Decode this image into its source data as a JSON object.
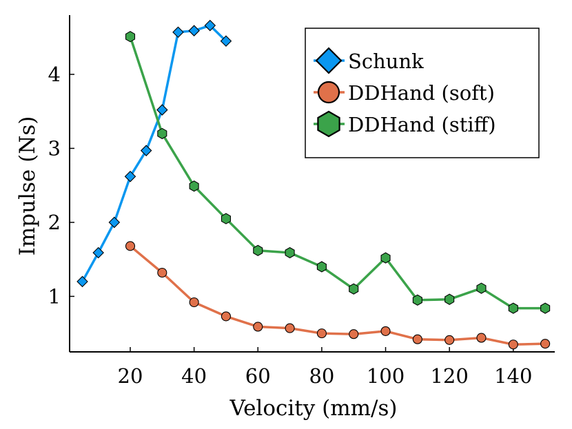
{
  "chart_data": {
    "type": "line",
    "title": "",
    "xlabel": "Velocity (mm/s)",
    "ylabel": "Impulse (Ns)",
    "xlim": [
      1,
      153
    ],
    "ylim": [
      0.25,
      4.8
    ],
    "xticks": [
      20,
      40,
      60,
      80,
      100,
      120,
      140
    ],
    "yticks": [
      1,
      2,
      3,
      4
    ],
    "grid": false,
    "legend_position": "top-right",
    "series": [
      {
        "name": "Schunk",
        "color": "#0a97f0",
        "marker": "diamond",
        "x": [
          5,
          10,
          15,
          20,
          25,
          30,
          35,
          40,
          45,
          50
        ],
        "y": [
          1.2,
          1.59,
          2.0,
          2.62,
          2.97,
          3.52,
          4.57,
          4.59,
          4.66,
          4.45
        ]
      },
      {
        "name": "DDHand (soft)",
        "color": "#e0714a",
        "marker": "circle",
        "x": [
          20,
          30,
          40,
          50,
          60,
          70,
          80,
          90,
          100,
          110,
          120,
          130,
          140,
          150
        ],
        "y": [
          1.68,
          1.32,
          0.92,
          0.73,
          0.59,
          0.57,
          0.5,
          0.49,
          0.53,
          0.42,
          0.41,
          0.44,
          0.35,
          0.36
        ]
      },
      {
        "name": "DDHand (stiff)",
        "color": "#3ba34a",
        "marker": "hexagon",
        "x": [
          20,
          30,
          40,
          50,
          60,
          70,
          80,
          90,
          100,
          110,
          120,
          130,
          140,
          150
        ],
        "y": [
          4.51,
          3.2,
          2.49,
          2.05,
          1.62,
          1.59,
          1.4,
          1.1,
          1.52,
          0.95,
          0.96,
          1.11,
          0.84,
          0.84
        ]
      }
    ]
  }
}
